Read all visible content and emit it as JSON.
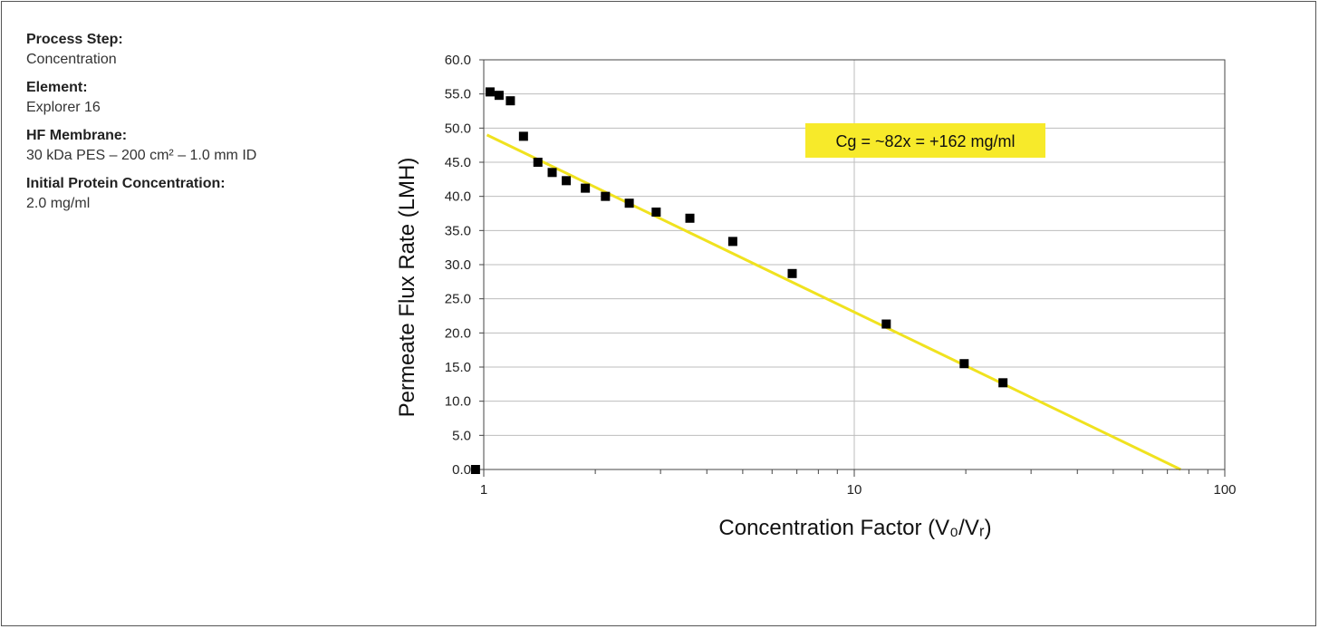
{
  "specs": [
    {
      "label": "Process Step:",
      "value": "Concentration"
    },
    {
      "label": "Element:",
      "value": "Explorer 16"
    },
    {
      "label": "HF Membrane:",
      "value": "30 kDa PES – 200 cm² – 1.0 mm ID"
    },
    {
      "label": "Initial Protein Concentration:",
      "value": "2.0 mg/ml"
    }
  ],
  "chart_data": {
    "type": "scatter",
    "xlabel": "Concentration Factor (V₀/Vᵣ)",
    "ylabel": "Permeate Flux Rate (LMH)",
    "x_scale": "log",
    "xlim": [
      1,
      100
    ],
    "ylim": [
      0,
      60
    ],
    "x_ticks": [
      1,
      10,
      100
    ],
    "x_tick_labels": [
      "1",
      "10",
      "100"
    ],
    "y_ticks": [
      0,
      5,
      10,
      15,
      20,
      25,
      30,
      35,
      40,
      45,
      50,
      55,
      60
    ],
    "y_tick_labels": [
      "0.0",
      "5.0",
      "10.0",
      "15.0",
      "20.0",
      "25.0",
      "30.0",
      "35.0",
      "40.0",
      "45.0",
      "50.0",
      "55.0",
      "60.0"
    ],
    "grid": true,
    "series": [
      {
        "marker": "square",
        "color": "#000000",
        "points": [
          [
            0.95,
            0.0
          ],
          [
            1.04,
            55.3
          ],
          [
            1.1,
            54.8
          ],
          [
            1.18,
            54.0
          ],
          [
            1.28,
            48.8
          ],
          [
            1.4,
            45.0
          ],
          [
            1.53,
            43.5
          ],
          [
            1.67,
            42.3
          ],
          [
            1.88,
            41.2
          ],
          [
            2.13,
            40.0
          ],
          [
            2.47,
            39.0
          ],
          [
            2.92,
            37.7
          ],
          [
            3.6,
            36.8
          ],
          [
            4.7,
            33.4
          ],
          [
            6.8,
            28.7
          ],
          [
            12.2,
            21.3
          ],
          [
            19.8,
            15.5
          ],
          [
            25.2,
            12.7
          ]
        ]
      }
    ],
    "trendline": {
      "color": "#f0e21f",
      "points": [
        [
          1.02,
          49.0
        ],
        [
          76,
          0.0
        ]
      ]
    },
    "annotation": {
      "text": "Cg = ~82x = +162 mg/ml",
      "background": "#f7ea2a"
    }
  }
}
